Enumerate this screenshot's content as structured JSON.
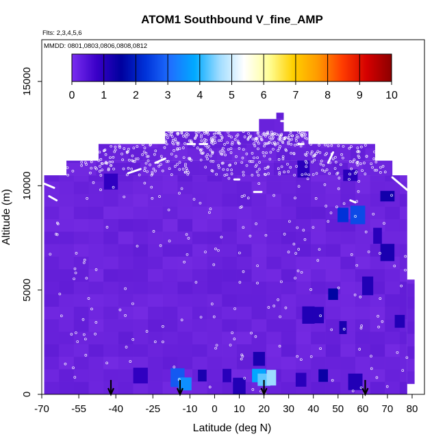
{
  "chart_data": {
    "type": "heatmap",
    "title": "ATOM1 Southbound V_fine_AMP",
    "flights_note": "Flts: 2,3,4,5,6",
    "dates_note": "MMDD: 0801,0803,0806,0808,0812",
    "xlabel": "Latitude (deg N)",
    "ylabel": "Altitude (m)",
    "xlim": [
      -70,
      85
    ],
    "ylim": [
      0,
      17000
    ],
    "x_ticks": [
      -70,
      -55,
      -40,
      -25,
      -10,
      0,
      10,
      20,
      30,
      40,
      50,
      60,
      70,
      80
    ],
    "y_ticks": [
      0,
      5000,
      10000,
      15000
    ],
    "colorbar": {
      "min": 0,
      "max": 10,
      "ticks": [
        0,
        1,
        2,
        3,
        4,
        5,
        6,
        7,
        8,
        9,
        10
      ],
      "colors": [
        "#7a2ef0",
        "#3a00c8",
        "#00009e",
        "#0033d9",
        "#1f6fff",
        "#00aaff",
        "#9fdcff",
        "#ffffff",
        "#ffff99",
        "#ffd000",
        "#ff9a00",
        "#ff3c00",
        "#d40000",
        "#8c0000"
      ]
    },
    "background_color": "#8a3ae6",
    "envelope": [
      {
        "lat_min": -69,
        "lat_max": 78,
        "alt_min": 0,
        "alt_max": 10500
      },
      {
        "lat_min": -60,
        "lat_max": 72,
        "alt_min": 10500,
        "alt_max": 11200
      },
      {
        "lat_min": -47,
        "lat_max": 65,
        "alt_min": 11200,
        "alt_max": 12000
      },
      {
        "lat_min": -20,
        "lat_max": 38,
        "alt_min": 12000,
        "alt_max": 12600
      },
      {
        "lat_min": 18,
        "lat_max": 28,
        "alt_min": 12600,
        "alt_max": 13200
      },
      {
        "lat_min": 25,
        "lat_max": 28,
        "alt_min": 13200,
        "alt_max": 13500
      },
      {
        "lat_min": 78,
        "lat_max": 81,
        "alt_min": 500,
        "alt_max": 5500
      }
    ],
    "patches": [
      {
        "lat": -15,
        "alt": 800,
        "value": 2.8
      },
      {
        "lat": -12,
        "alt": 500,
        "value": 3.5
      },
      {
        "lat": -5,
        "alt": 900,
        "value": 1.2
      },
      {
        "lat": 5,
        "alt": 900,
        "value": 1.0
      },
      {
        "lat": 18,
        "alt": 900,
        "value": 3.8
      },
      {
        "lat": 20,
        "alt": 700,
        "value": 4.3
      },
      {
        "lat": 23,
        "alt": 800,
        "value": 4.6
      },
      {
        "lat": 18,
        "alt": 1700,
        "value": 1.2
      },
      {
        "lat": 35,
        "alt": 700,
        "value": 1.0
      },
      {
        "lat": 44,
        "alt": 900,
        "value": 1.4
      },
      {
        "lat": 57,
        "alt": 600,
        "value": 1.1
      },
      {
        "lat": 48,
        "alt": 4800,
        "value": 1.6
      },
      {
        "lat": 38,
        "alt": 3800,
        "value": 1.1
      },
      {
        "lat": 42,
        "alt": 3800,
        "value": 1.1
      },
      {
        "lat": 52,
        "alt": 3200,
        "value": 1.2
      },
      {
        "lat": 62,
        "alt": 5200,
        "value": 1.1
      },
      {
        "lat": 70,
        "alt": 6800,
        "value": 1.2
      },
      {
        "lat": 66,
        "alt": 7600,
        "value": 1.0
      },
      {
        "lat": 52,
        "alt": 8600,
        "value": 2.3
      },
      {
        "lat": 58,
        "alt": 8600,
        "value": 2.6
      },
      {
        "lat": 70,
        "alt": 9500,
        "value": 1.3
      },
      {
        "lat": 55,
        "alt": 10500,
        "value": 1.0
      },
      {
        "lat": 36,
        "alt": 10800,
        "value": 1.0
      },
      {
        "lat": -42,
        "alt": 10200,
        "value": 0.9
      },
      {
        "lat": 75,
        "alt": 3500,
        "value": 1.1
      },
      {
        "lat": -30,
        "alt": 900,
        "value": 0.9
      },
      {
        "lat": 10,
        "alt": 400,
        "value": 1.1
      }
    ],
    "flight_track_segments": [
      {
        "lat": [
          -69,
          -65
        ],
        "alt": [
          10100,
          9900
        ]
      },
      {
        "lat": [
          -67,
          -64
        ],
        "alt": [
          9500,
          9300
        ]
      },
      {
        "lat": [
          -35,
          -30
        ],
        "alt": [
          10600,
          10800
        ]
      },
      {
        "lat": [
          -24,
          -20
        ],
        "alt": [
          11100,
          11300
        ]
      },
      {
        "lat": [
          -11,
          -8
        ],
        "alt": [
          12000,
          12000
        ]
      },
      {
        "lat": [
          -6,
          -3
        ],
        "alt": [
          12000,
          12000
        ]
      },
      {
        "lat": [
          27,
          29
        ],
        "alt": [
          13100,
          13100
        ]
      },
      {
        "lat": [
          34,
          36
        ],
        "alt": [
          12000,
          12000
        ]
      },
      {
        "lat": [
          8,
          10
        ],
        "alt": [
          10300,
          10300
        ]
      },
      {
        "lat": [
          16,
          19
        ],
        "alt": [
          9700,
          9700
        ]
      },
      {
        "lat": [
          55,
          57
        ],
        "alt": [
          9300,
          9200
        ]
      },
      {
        "lat": [
          72,
          78
        ],
        "alt": [
          10400,
          9800
        ]
      },
      {
        "lat": [
          46,
          48
        ],
        "alt": [
          11100,
          11600
        ]
      }
    ],
    "arrows_lat": [
      -42,
      -14,
      20,
      61
    ]
  }
}
